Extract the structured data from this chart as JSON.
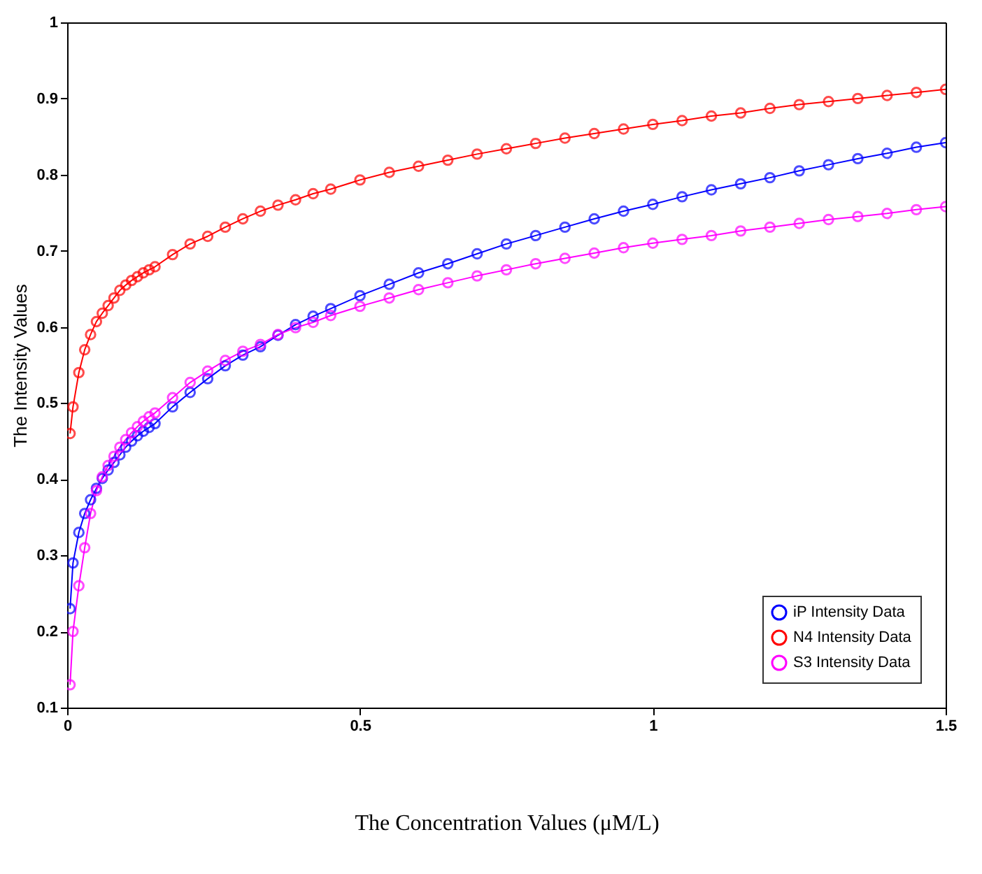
{
  "chart_data": {
    "type": "line",
    "xlabel": "The Concentration Values (μM/L)",
    "ylabel": "The Intensity Values",
    "x": [
      0.005,
      0.01,
      0.02,
      0.03,
      0.04,
      0.05,
      0.06,
      0.07,
      0.08,
      0.09,
      0.1,
      0.11,
      0.12,
      0.13,
      0.14,
      0.15,
      0.18,
      0.21,
      0.24,
      0.27,
      0.3,
      0.33,
      0.36,
      0.39,
      0.42,
      0.45,
      0.5,
      0.55,
      0.6,
      0.65,
      0.7,
      0.75,
      0.8,
      0.85,
      0.9,
      0.95,
      1.0,
      1.05,
      1.1,
      1.15,
      1.2,
      1.25,
      1.3,
      1.35,
      1.4,
      1.45,
      1.5
    ],
    "series": [
      {
        "name": "iP Intensity Data",
        "color": "#0000ff",
        "values": [
          0.23,
          0.29,
          0.33,
          0.355,
          0.373,
          0.388,
          0.401,
          0.412,
          0.422,
          0.432,
          0.442,
          0.45,
          0.457,
          0.463,
          0.468,
          0.473,
          0.495,
          0.514,
          0.532,
          0.549,
          0.563,
          0.574,
          0.589,
          0.603,
          0.614,
          0.624,
          0.641,
          0.656,
          0.671,
          0.683,
          0.696,
          0.709,
          0.72,
          0.731,
          0.742,
          0.752,
          0.761,
          0.771,
          0.78,
          0.788,
          0.796,
          0.805,
          0.813,
          0.821,
          0.828,
          0.836,
          0.842
        ]
      },
      {
        "name": "N4 Intensity Data",
        "color": "#ff0000",
        "values": [
          0.46,
          0.495,
          0.54,
          0.57,
          0.59,
          0.607,
          0.618,
          0.628,
          0.638,
          0.648,
          0.655,
          0.661,
          0.666,
          0.671,
          0.675,
          0.679,
          0.695,
          0.709,
          0.719,
          0.731,
          0.742,
          0.752,
          0.76,
          0.767,
          0.775,
          0.781,
          0.793,
          0.803,
          0.811,
          0.819,
          0.827,
          0.834,
          0.841,
          0.848,
          0.854,
          0.86,
          0.866,
          0.871,
          0.877,
          0.881,
          0.887,
          0.892,
          0.896,
          0.9,
          0.904,
          0.908,
          0.912
        ]
      },
      {
        "name": "S3 Intensity Data",
        "color": "#ff00ff",
        "values": [
          0.13,
          0.2,
          0.26,
          0.31,
          0.355,
          0.385,
          0.403,
          0.418,
          0.43,
          0.442,
          0.452,
          0.461,
          0.469,
          0.476,
          0.482,
          0.487,
          0.507,
          0.527,
          0.542,
          0.556,
          0.568,
          0.577,
          0.59,
          0.599,
          0.606,
          0.615,
          0.627,
          0.638,
          0.649,
          0.658,
          0.667,
          0.675,
          0.683,
          0.69,
          0.697,
          0.704,
          0.71,
          0.715,
          0.72,
          0.726,
          0.731,
          0.736,
          0.741,
          0.745,
          0.749,
          0.754,
          0.758
        ]
      }
    ],
    "xlim": [
      0,
      1.5
    ],
    "xticks": [
      0,
      0.5,
      1,
      1.5
    ],
    "ylim": [
      0.1,
      1
    ],
    "yticks": [
      0.1,
      0.2,
      0.3,
      0.4,
      0.5,
      0.6,
      0.7,
      0.8,
      0.9,
      1
    ],
    "grid": false,
    "legend": "bottom right",
    "marker": "circle",
    "line_style": "solid"
  }
}
